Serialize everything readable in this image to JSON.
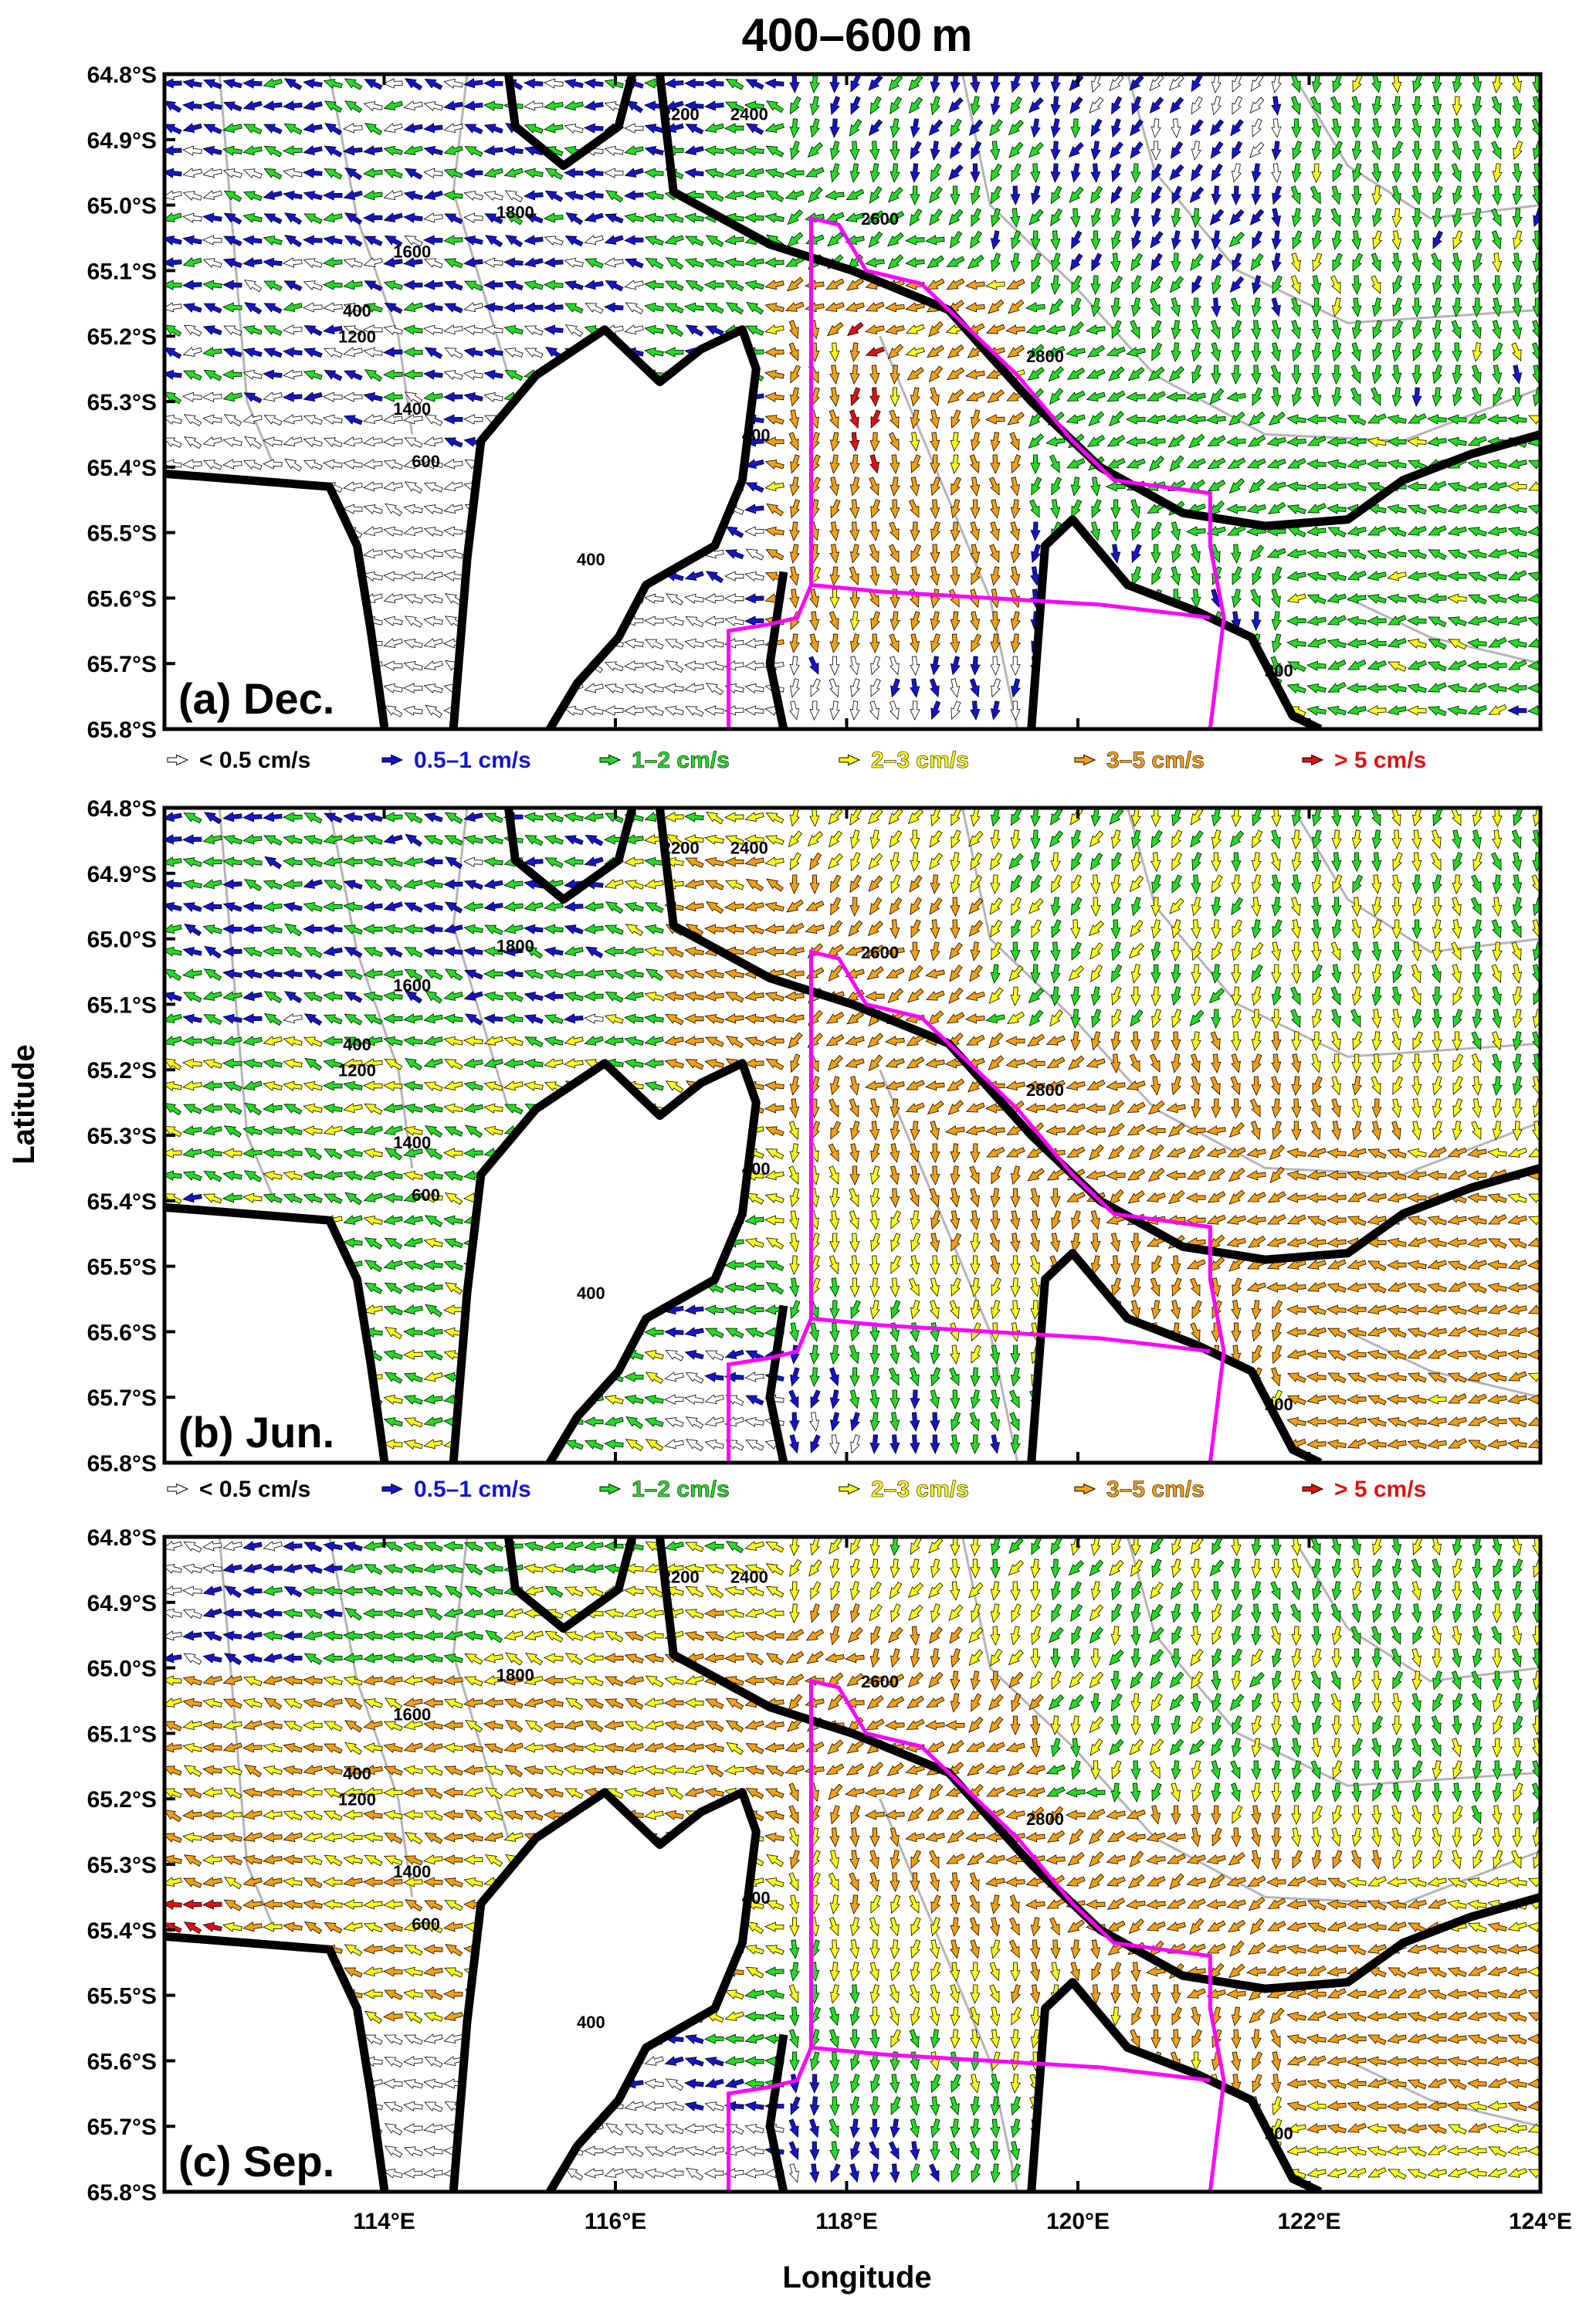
{
  "title": "400–600 m",
  "xlabel": "Longitude",
  "ylabel": "Latitude",
  "colors": {
    "white": "#ffffff",
    "blue": "#1414c8",
    "green": "#22dd22",
    "yellow": "#ffff10",
    "orange": "#f5a010",
    "red": "#e01010",
    "land": "#ffffff",
    "coast": "#000000",
    "box": "#ff00ff",
    "bathy": "#b4b4b4"
  },
  "chart_data": [
    {
      "type": "vector",
      "panel_label": "(a) Dec.",
      "x_ticks": [
        "114°E",
        "116°E",
        "118°E",
        "120°E",
        "122°E",
        "124°E"
      ],
      "x_tick_values": [
        114,
        116,
        118,
        120,
        122,
        124
      ],
      "y_ticks": [
        "64.8°S",
        "64.9°S",
        "65.0°S",
        "65.1°S",
        "65.2°S",
        "65.3°S",
        "65.4°S",
        "65.5°S",
        "65.6°S",
        "65.7°S",
        "65.8°S"
      ],
      "y_tick_values": [
        -64.8,
        -64.9,
        -65.0,
        -65.1,
        -65.2,
        -65.3,
        -65.4,
        -65.5,
        -65.6,
        -65.7,
        -65.8
      ],
      "xlim": [
        112.1,
        124.0
      ],
      "ylim": [
        -65.8,
        -64.8
      ],
      "contour_labels": [
        "1800",
        "2200",
        "2400",
        "1600",
        "400",
        "1200",
        "2600",
        "2800",
        "1400",
        "400",
        "600",
        "400",
        "200"
      ],
      "legend": [
        "< 0.5 cm/s",
        "0.5–1 cm/s",
        "1–2 cm/s",
        "2–3 cm/s",
        "3–5 cm/s",
        "> 5 cm/s"
      ]
    },
    {
      "type": "vector",
      "panel_label": "(b) Jun.",
      "x_ticks": [
        "114°E",
        "116°E",
        "118°E",
        "120°E",
        "122°E",
        "124°E"
      ],
      "x_tick_values": [
        114,
        116,
        118,
        120,
        122,
        124
      ],
      "y_ticks": [
        "64.8°S",
        "64.9°S",
        "65.0°S",
        "65.1°S",
        "65.2°S",
        "65.3°S",
        "65.4°S",
        "65.5°S",
        "65.6°S",
        "65.7°S",
        "65.8°S"
      ],
      "y_tick_values": [
        -64.8,
        -64.9,
        -65.0,
        -65.1,
        -65.2,
        -65.3,
        -65.4,
        -65.5,
        -65.6,
        -65.7,
        -65.8
      ],
      "xlim": [
        112.1,
        124.0
      ],
      "ylim": [
        -65.8,
        -64.8
      ],
      "contour_labels": [
        "1800",
        "2200",
        "2400",
        "1600",
        "400",
        "1200",
        "2600",
        "2800",
        "1400",
        "400",
        "600",
        "400",
        "200"
      ],
      "legend": [
        "< 0.5 cm/s",
        "0.5–1 cm/s",
        "1–2 cm/s",
        "2–3 cm/s",
        "3–5 cm/s",
        "> 5 cm/s"
      ]
    },
    {
      "type": "vector",
      "panel_label": "(c) Sep.",
      "x_ticks": [
        "114°E",
        "116°E",
        "118°E",
        "120°E",
        "122°E",
        "124°E"
      ],
      "x_tick_values": [
        114,
        116,
        118,
        120,
        122,
        124
      ],
      "y_ticks": [
        "64.8°S",
        "64.9°S",
        "65.0°S",
        "65.1°S",
        "65.2°S",
        "65.3°S",
        "65.4°S",
        "65.5°S",
        "65.6°S",
        "65.7°S",
        "65.8°S"
      ],
      "y_tick_values": [
        -64.8,
        -64.9,
        -65.0,
        -65.1,
        -65.2,
        -65.3,
        -65.4,
        -65.5,
        -65.6,
        -65.7,
        -65.8
      ],
      "xlim": [
        112.1,
        124.0
      ],
      "ylim": [
        -65.8,
        -64.8
      ],
      "contour_labels": [
        "1800",
        "2200",
        "2400",
        "1600",
        "400",
        "1200",
        "2600",
        "2800",
        "1400",
        "400",
        "600",
        "400",
        "200"
      ]
    }
  ]
}
